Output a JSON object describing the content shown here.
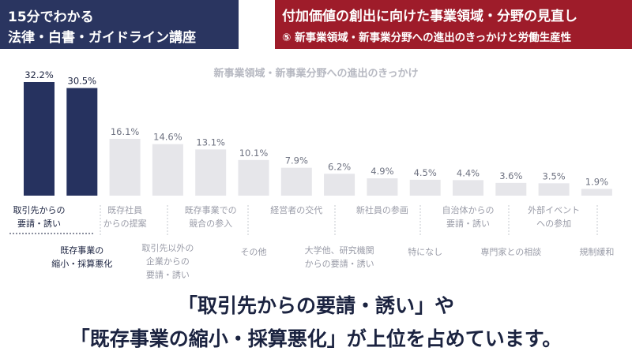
{
  "header": {
    "left_line1": "15分でわかる",
    "left_line2": "法律・白書・ガイドライン講座",
    "right_title": "付加価値の創出に向けた事業領域・分野の見直し",
    "right_subtitle": "⑤ 新事業領域・新事業分野への進出のきっかけと労働生産性"
  },
  "colors": {
    "header_left_bg": "#2a3560",
    "header_right_bg": "#9e1c2a",
    "bar_highlight": "#26325f",
    "bar_normal": "#e6e6ea",
    "category_text": "#9a9ca8",
    "category_text_highlight": "#1b2340"
  },
  "chart_data": {
    "type": "bar",
    "title": "新事業領域・新事業分野への進出のきっかけ",
    "categories": [
      "取引先からの要請・誘い",
      "既存事業の縮小・採算悪化",
      "既存社員からの提案",
      "取引先以外の企業からの要請・誘い",
      "既存事業での競合の参入",
      "その他",
      "経営者の交代",
      "大学他、研究機関からの要請・誘い",
      "新社員の参画",
      "特になし",
      "自治体からの要請・誘い",
      "専門家との相談",
      "外部イベントへの参加",
      "規制緩和"
    ],
    "values": [
      32.2,
      30.5,
      16.1,
      14.6,
      13.1,
      10.1,
      7.9,
      6.2,
      4.9,
      4.5,
      4.4,
      3.6,
      3.5,
      1.9
    ],
    "value_labels": [
      "32.2%",
      "30.5%",
      "16.1%",
      "14.6%",
      "13.1%",
      "10.1%",
      "7.9%",
      "6.2%",
      "4.9%",
      "4.5%",
      "4.4%",
      "3.6%",
      "3.5%",
      "1.9%"
    ],
    "category_label_lines": [
      [
        "取引先からの",
        "要請・誘い"
      ],
      [
        "既存事業の",
        "縮小・採算悪化"
      ],
      [
        "既存社員",
        "からの提案"
      ],
      [
        "取引先以外の",
        "企業からの",
        "要請・誘い"
      ],
      [
        "既存事業での",
        "競合の参入"
      ],
      [
        "その他"
      ],
      [
        "経営者の交代"
      ],
      [
        "大学他、研究機関",
        "からの要請・誘い"
      ],
      [
        "新社員の参画"
      ],
      [
        "特になし"
      ],
      [
        "自治体からの",
        "要請・誘い"
      ],
      [
        "専門家との相談"
      ],
      [
        "外部イベント",
        "への参加"
      ],
      [
        "規制緩和"
      ]
    ],
    "highlighted": [
      0,
      1
    ],
    "ylim": [
      0,
      35
    ],
    "grid": false,
    "legend": "none"
  },
  "conclusion": {
    "line1": "「取引先からの要請・誘い」や",
    "line2": "「既存事業の縮小・採算悪化」が上位を占めています。"
  }
}
